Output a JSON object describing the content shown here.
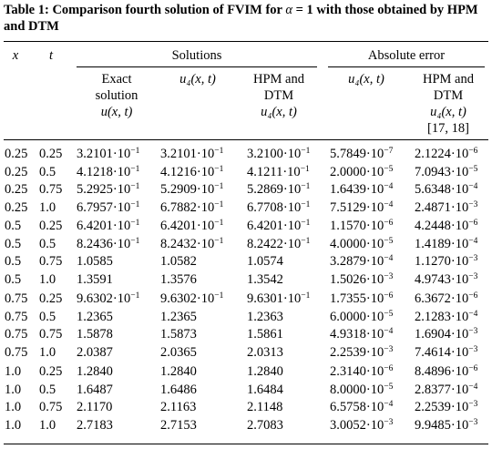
{
  "caption": {
    "prefix": "Table 1:",
    "text_a": "Comparison fourth solution of FVIM for",
    "alpha": "α",
    "text_b": "= 1 with those obtained by HPM and DTM"
  },
  "headers": {
    "x": "x",
    "t": "t",
    "solutions": "Solutions",
    "absolute_error": "Absolute error",
    "exact": [
      "Exact",
      "solution",
      "u(x, t)"
    ],
    "u4": "u₄(x, t)",
    "hpm_dtm": [
      "HPM and",
      "DTM",
      "u₄(x, t)"
    ],
    "abs_u4": "u₄(x, t)",
    "abs_hpm_dtm": [
      "HPM and",
      "DTM",
      "u₄(x, t)",
      "[17, 18]"
    ]
  },
  "groups": [
    [
      {
        "x": "0.25",
        "t": "0.25",
        "exact": [
          "3.2101",
          "−1"
        ],
        "u4": [
          "3.2101",
          "−1"
        ],
        "hpm": [
          "3.2100",
          "−1"
        ],
        "err_u4": [
          "5.7849",
          "−7"
        ],
        "err_hpm": [
          "2.1224",
          "−6"
        ]
      },
      {
        "x": "0.25",
        "t": "0.5",
        "exact": [
          "4.1218",
          "−1"
        ],
        "u4": [
          "4.1216",
          "−1"
        ],
        "hpm": [
          "4.1211",
          "−1"
        ],
        "err_u4": [
          "2.0000",
          "−5"
        ],
        "err_hpm": [
          "7.0943",
          "−5"
        ]
      },
      {
        "x": "0.25",
        "t": "0.75",
        "exact": [
          "5.2925",
          "−1"
        ],
        "u4": [
          "5.2909",
          "−1"
        ],
        "hpm": [
          "5.2869",
          "−1"
        ],
        "err_u4": [
          "1.6439",
          "−4"
        ],
        "err_hpm": [
          "5.6348",
          "−4"
        ]
      },
      {
        "x": "0.25",
        "t": "1.0",
        "exact": [
          "6.7957",
          "−1"
        ],
        "u4": [
          "6.7882",
          "−1"
        ],
        "hpm": [
          "6.7708",
          "−1"
        ],
        "err_u4": [
          "7.5129",
          "−4"
        ],
        "err_hpm": [
          "2.4871",
          "−3"
        ]
      }
    ],
    [
      {
        "x": "0.5",
        "t": "0.25",
        "exact": [
          "6.4201",
          "−1"
        ],
        "u4": [
          "6.4201",
          "−1"
        ],
        "hpm": [
          "6.4201",
          "−1"
        ],
        "err_u4": [
          "1.1570",
          "−6"
        ],
        "err_hpm": [
          "4.2448",
          "−6"
        ]
      },
      {
        "x": "0.5",
        "t": "0.5",
        "exact": [
          "8.2436",
          "−1"
        ],
        "u4": [
          "8.2432",
          "−1"
        ],
        "hpm": [
          "8.2422",
          "−1"
        ],
        "err_u4": [
          "4.0000",
          "−5"
        ],
        "err_hpm": [
          "1.4189",
          "−4"
        ]
      },
      {
        "x": "0.5",
        "t": "0.75",
        "exact": [
          "1.0585",
          ""
        ],
        "u4": [
          "1.0582",
          ""
        ],
        "hpm": [
          "1.0574",
          ""
        ],
        "err_u4": [
          "3.2879",
          "−4"
        ],
        "err_hpm": [
          "1.1270",
          "−3"
        ]
      },
      {
        "x": "0.5",
        "t": "1.0",
        "exact": [
          "1.3591",
          ""
        ],
        "u4": [
          "1.3576",
          ""
        ],
        "hpm": [
          "1.3542",
          ""
        ],
        "err_u4": [
          "1.5026",
          "−3"
        ],
        "err_hpm": [
          "4.9743",
          "−3"
        ]
      }
    ],
    [
      {
        "x": "0.75",
        "t": "0.25",
        "exact": [
          "9.6302",
          "−1"
        ],
        "u4": [
          "9.6302",
          "−1"
        ],
        "hpm": [
          "9.6301",
          "−1"
        ],
        "err_u4": [
          "1.7355",
          "−6"
        ],
        "err_hpm": [
          "6.3672",
          "−6"
        ]
      },
      {
        "x": "0.75",
        "t": "0.5",
        "exact": [
          "1.2365",
          ""
        ],
        "u4": [
          "1.2365",
          ""
        ],
        "hpm": [
          "1.2363",
          ""
        ],
        "err_u4": [
          "6.0000",
          "−5"
        ],
        "err_hpm": [
          "2.1283",
          "−4"
        ]
      },
      {
        "x": "0.75",
        "t": "0.75",
        "exact": [
          "1.5878",
          ""
        ],
        "u4": [
          "1.5873",
          ""
        ],
        "hpm": [
          "1.5861",
          ""
        ],
        "err_u4": [
          "4.9318",
          "−4"
        ],
        "err_hpm": [
          "1.6904",
          "−3"
        ]
      },
      {
        "x": "0.75",
        "t": "1.0",
        "exact": [
          "2.0387",
          ""
        ],
        "u4": [
          "2.0365",
          ""
        ],
        "hpm": [
          "2.0313",
          ""
        ],
        "err_u4": [
          "2.2539",
          "−3"
        ],
        "err_hpm": [
          "7.4614",
          "−3"
        ]
      }
    ],
    [
      {
        "x": "1.0",
        "t": "0.25",
        "exact": [
          "1.2840",
          ""
        ],
        "u4": [
          "1.2840",
          ""
        ],
        "hpm": [
          "1.2840",
          ""
        ],
        "err_u4": [
          "2.3140",
          "−6"
        ],
        "err_hpm": [
          "8.4896",
          "−6"
        ]
      },
      {
        "x": "1.0",
        "t": "0.5",
        "exact": [
          "1.6487",
          ""
        ],
        "u4": [
          "1.6486",
          ""
        ],
        "hpm": [
          "1.6484",
          ""
        ],
        "err_u4": [
          "8.0000",
          "−5"
        ],
        "err_hpm": [
          "2.8377",
          "−4"
        ]
      },
      {
        "x": "1.0",
        "t": "0.75",
        "exact": [
          "2.1170",
          ""
        ],
        "u4": [
          "2.1163",
          ""
        ],
        "hpm": [
          "2.1148",
          ""
        ],
        "err_u4": [
          "6.5758",
          "−4"
        ],
        "err_hpm": [
          "2.2539",
          "−3"
        ]
      },
      {
        "x": "1.0",
        "t": "1.0",
        "exact": [
          "2.7183",
          ""
        ],
        "u4": [
          "2.7153",
          ""
        ],
        "hpm": [
          "2.7083",
          ""
        ],
        "err_u4": [
          "3.0052",
          "−3"
        ],
        "err_hpm": [
          "9.9485",
          "−3"
        ]
      }
    ]
  ]
}
